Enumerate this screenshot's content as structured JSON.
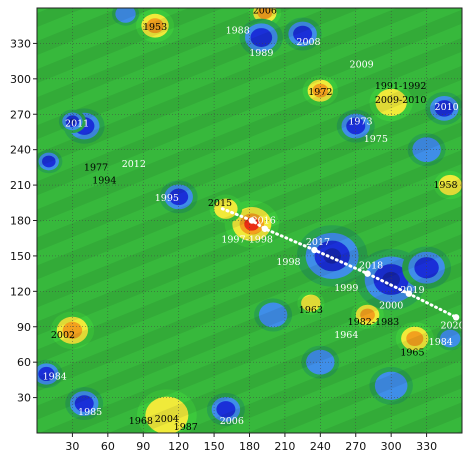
{
  "chart_data": {
    "type": "heatmap",
    "title": "",
    "xlabel": "",
    "ylabel": "",
    "xlim": [
      0,
      360
    ],
    "ylim": [
      0,
      360
    ],
    "x_ticks": [
      30,
      60,
      90,
      120,
      150,
      180,
      210,
      240,
      270,
      300,
      330
    ],
    "y_ticks": [
      30,
      60,
      90,
      120,
      150,
      180,
      210,
      240,
      270,
      300,
      330
    ],
    "grid": true,
    "colorscale": [
      "#1a2fd8",
      "#3f8ee8",
      "#2aa34c",
      "#3cc83c",
      "#f0ea3a",
      "#f2a11e",
      "#ea2d14"
    ],
    "hotspots": [
      {
        "x": 30,
        "y": 87,
        "level": 1.0,
        "r": 16
      },
      {
        "x": 182,
        "y": 177,
        "level": 1.25,
        "r": 20
      },
      {
        "x": 100,
        "y": 345,
        "level": 0.9,
        "r": 14
      },
      {
        "x": 193,
        "y": 356,
        "level": 0.85,
        "r": 12
      },
      {
        "x": 240,
        "y": 290,
        "level": 0.85,
        "r": 13
      },
      {
        "x": 300,
        "y": 280,
        "level": 0.8,
        "r": 16
      },
      {
        "x": 280,
        "y": 100,
        "level": 0.95,
        "r": 12
      },
      {
        "x": 320,
        "y": 80,
        "level": 0.95,
        "r": 14
      },
      {
        "x": 232,
        "y": 110,
        "level": 0.75,
        "r": 10
      },
      {
        "x": 350,
        "y": 210,
        "level": 0.7,
        "r": 12
      },
      {
        "x": 110,
        "y": 15,
        "level": 0.75,
        "r": 22
      },
      {
        "x": 160,
        "y": 190,
        "level": 0.55,
        "r": 12
      },
      {
        "x": 40,
        "y": 260,
        "level": -0.9,
        "r": 15
      },
      {
        "x": 30,
        "y": 264,
        "level": -1.2,
        "r": 10
      },
      {
        "x": 190,
        "y": 335,
        "level": -0.9,
        "r": 16
      },
      {
        "x": 225,
        "y": 338,
        "level": -0.8,
        "r": 14
      },
      {
        "x": 250,
        "y": 150,
        "level": -1.2,
        "r": 26
      },
      {
        "x": 300,
        "y": 130,
        "level": -1.25,
        "r": 26
      },
      {
        "x": 330,
        "y": 140,
        "level": -1.0,
        "r": 18
      },
      {
        "x": 345,
        "y": 275,
        "level": -1.1,
        "r": 14
      },
      {
        "x": 270,
        "y": 260,
        "level": -0.9,
        "r": 14
      },
      {
        "x": 120,
        "y": 200,
        "level": -0.85,
        "r": 14
      },
      {
        "x": 10,
        "y": 230,
        "level": -0.8,
        "r": 10
      },
      {
        "x": 8,
        "y": 50,
        "level": -0.9,
        "r": 12
      },
      {
        "x": 40,
        "y": 25,
        "level": -0.9,
        "r": 14
      },
      {
        "x": 160,
        "y": 20,
        "level": -0.9,
        "r": 14
      },
      {
        "x": 240,
        "y": 60,
        "level": -0.7,
        "r": 14
      },
      {
        "x": 75,
        "y": 355,
        "level": -0.7,
        "r": 10
      },
      {
        "x": 330,
        "y": 240,
        "level": -0.6,
        "r": 14
      },
      {
        "x": 350,
        "y": 80,
        "level": -0.7,
        "r": 10
      },
      {
        "x": 200,
        "y": 100,
        "level": -0.5,
        "r": 14
      },
      {
        "x": 300,
        "y": 40,
        "level": -0.5,
        "r": 16
      }
    ],
    "trajectory": {
      "color": "#ffffff",
      "style": "dotted",
      "points": [
        {
          "x": 157,
          "y": 190
        },
        {
          "x": 182,
          "y": 180
        },
        {
          "x": 193,
          "y": 173
        },
        {
          "x": 235,
          "y": 155
        },
        {
          "x": 280,
          "y": 135
        },
        {
          "x": 315,
          "y": 118
        },
        {
          "x": 355,
          "y": 98
        }
      ],
      "markers": [
        {
          "x": 182,
          "y": 180
        },
        {
          "x": 193,
          "y": 173
        },
        {
          "x": 235,
          "y": 155
        },
        {
          "x": 280,
          "y": 135
        },
        {
          "x": 315,
          "y": 118
        },
        {
          "x": 355,
          "y": 98
        }
      ]
    },
    "annotations": [
      {
        "text": "2006",
        "x": 193,
        "y": 358,
        "color": "#000000"
      },
      {
        "text": "1953",
        "x": 100,
        "y": 344,
        "color": "#000000"
      },
      {
        "text": "1988",
        "x": 170,
        "y": 341,
        "color": "#ffffff"
      },
      {
        "text": "2008",
        "x": 230,
        "y": 331,
        "color": "#ffffff"
      },
      {
        "text": "1989",
        "x": 190,
        "y": 322,
        "color": "#ffffff"
      },
      {
        "text": "2009",
        "x": 275,
        "y": 312,
        "color": "#ffffff"
      },
      {
        "text": "1991-1992",
        "x": 308,
        "y": 294,
        "color": "#000000"
      },
      {
        "text": "1972",
        "x": 240,
        "y": 289,
        "color": "#000000"
      },
      {
        "text": "2009-2010",
        "x": 308,
        "y": 282,
        "color": "#000000"
      },
      {
        "text": "2010",
        "x": 347,
        "y": 276,
        "color": "#ffffff"
      },
      {
        "text": "2011",
        "x": 34,
        "y": 262,
        "color": "#ffffff"
      },
      {
        "text": "1973",
        "x": 274,
        "y": 264,
        "color": "#ffffff"
      },
      {
        "text": "1975",
        "x": 287,
        "y": 249,
        "color": "#ffffff"
      },
      {
        "text": "2012",
        "x": 82,
        "y": 228,
        "color": "#ffffff"
      },
      {
        "text": "1977",
        "x": 50,
        "y": 225,
        "color": "#000000"
      },
      {
        "text": "1994",
        "x": 57,
        "y": 214,
        "color": "#000000"
      },
      {
        "text": "1958",
        "x": 346,
        "y": 210,
        "color": "#000000"
      },
      {
        "text": "1995",
        "x": 110,
        "y": 199,
        "color": "#ffffff"
      },
      {
        "text": "2015",
        "x": 155,
        "y": 195,
        "color": "#000000"
      },
      {
        "text": "2016",
        "x": 192,
        "y": 180,
        "color": "#ffffff"
      },
      {
        "text": "1997-1998",
        "x": 178,
        "y": 164,
        "color": "#ffffff"
      },
      {
        "text": "2017",
        "x": 238,
        "y": 162,
        "color": "#ffffff"
      },
      {
        "text": "1998",
        "x": 213,
        "y": 145,
        "color": "#ffffff"
      },
      {
        "text": "2018",
        "x": 283,
        "y": 142,
        "color": "#ffffff"
      },
      {
        "text": "1999",
        "x": 262,
        "y": 123,
        "color": "#ffffff"
      },
      {
        "text": "2019",
        "x": 318,
        "y": 121,
        "color": "#ffffff"
      },
      {
        "text": "2000",
        "x": 300,
        "y": 108,
        "color": "#ffffff"
      },
      {
        "text": "1963",
        "x": 232,
        "y": 104,
        "color": "#000000"
      },
      {
        "text": "1982-1983",
        "x": 285,
        "y": 94,
        "color": "#000000"
      },
      {
        "text": "2020",
        "x": 352,
        "y": 91,
        "color": "#ffffff"
      },
      {
        "text": "2002",
        "x": 22,
        "y": 83,
        "color": "#000000"
      },
      {
        "text": "1964",
        "x": 262,
        "y": 83,
        "color": "#ffffff"
      },
      {
        "text": "1984",
        "x": 342,
        "y": 77,
        "color": "#ffffff"
      },
      {
        "text": "1965",
        "x": 318,
        "y": 68,
        "color": "#000000"
      },
      {
        "text": "1984",
        "x": 15,
        "y": 48,
        "color": "#ffffff"
      },
      {
        "text": "1985",
        "x": 45,
        "y": 18,
        "color": "#ffffff"
      },
      {
        "text": "1968",
        "x": 88,
        "y": 10,
        "color": "#000000"
      },
      {
        "text": "2004",
        "x": 110,
        "y": 12,
        "color": "#000000"
      },
      {
        "text": "1987",
        "x": 126,
        "y": 5,
        "color": "#000000"
      },
      {
        "text": "2006",
        "x": 165,
        "y": 10,
        "color": "#ffffff"
      }
    ]
  }
}
